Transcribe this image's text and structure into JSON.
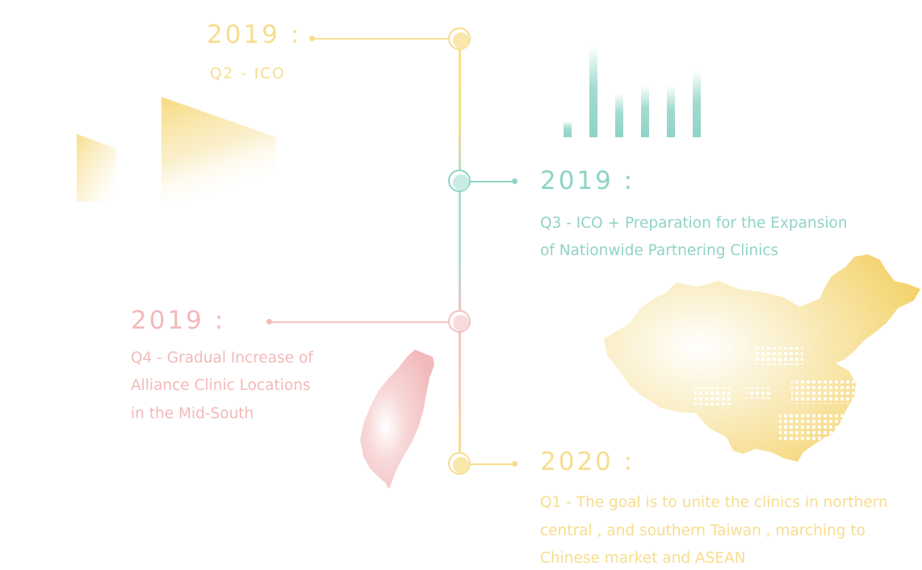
{
  "timeline": {
    "entries": [
      {
        "year": "2019 :",
        "quarter_text": "Q2  -  ICO",
        "color": "#f7dd8d"
      },
      {
        "year": "2019 :",
        "quarter_text_line1": "Q3  -  ICO + Preparation for the Expansion",
        "quarter_text_line2": "of Nationwide Partnering Clinics",
        "color": "#8fd3c6"
      },
      {
        "year": "2019 :",
        "quarter_text_line1": "Q4  -  Gradual Increase of",
        "quarter_text_line2": "Alliance Clinic Locations",
        "quarter_text_line3": "in the Mid-South",
        "color": "#f3b9b9"
      },
      {
        "year": "2020 :",
        "quarter_text_line1": "Q1  -  The goal is to unite the clinics in northern",
        "quarter_text_line2": "central , and southern Taiwan , marching to",
        "quarter_text_line3": "Chinese market and ASEAN",
        "color": "#f7dd8d"
      }
    ]
  },
  "decorations": {
    "bar_chart_icon": "bar-chart-decoration",
    "taiwan_map_icon": "taiwan-map",
    "china_map_icon": "china-map",
    "isometric_shape_icon": "isometric-blocks"
  }
}
